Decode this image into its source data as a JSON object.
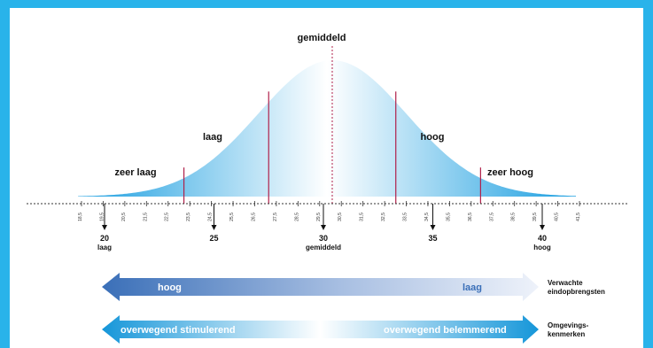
{
  "chart_data": {
    "type": "area",
    "title": "gemiddeld",
    "xlim": [
      18,
      41.5
    ],
    "ylim": [
      0,
      1
    ],
    "curve": {
      "mean": 30,
      "sd": 3.5
    },
    "boundaries": [
      23,
      27,
      33,
      37
    ],
    "mean_line": 30,
    "zones": [
      {
        "label": "zeer laag",
        "x": 21
      },
      {
        "label": "laag",
        "x": 25
      },
      {
        "label": "hoog",
        "x": 35
      },
      {
        "label": "zeer hoog",
        "x": 39
      }
    ],
    "ticks": [
      "18,5",
      "19,5",
      "20,5",
      "21,5",
      "22,5",
      "23,5",
      "24,5",
      "25,5",
      "26,5",
      "27,5",
      "28,5",
      "29,5",
      "30,5",
      "31,5",
      "32,5",
      "33,5",
      "34,5",
      "35,5",
      "36,5",
      "37,5",
      "38,5",
      "39,5",
      "40,5",
      "41,5"
    ],
    "markers": [
      {
        "value": "20",
        "sub": "laag",
        "x": 20
      },
      {
        "value": "25",
        "sub": "",
        "x": 25
      },
      {
        "value": "30",
        "sub": "gemiddeld",
        "x": 30
      },
      {
        "value": "35",
        "sub": "",
        "x": 35
      },
      {
        "value": "40",
        "sub": "hoog",
        "x": 40
      }
    ]
  },
  "arrows": {
    "top": {
      "left_label": "hoog",
      "right_label": "laag",
      "caption_line1": "Verwachte",
      "caption_line2": "eindopbrengsten",
      "color": "#3a6fb8"
    },
    "bottom": {
      "left_label": "overwegend stimulerend",
      "right_label": "overwegend belemmerend",
      "caption_line1": "Omgevings-",
      "caption_line2": "kenmerken",
      "color": "#1596d9"
    }
  },
  "colors": {
    "frame": "#29b3ea",
    "boundary": "#b0204a",
    "curve": "#1a9ee0"
  }
}
